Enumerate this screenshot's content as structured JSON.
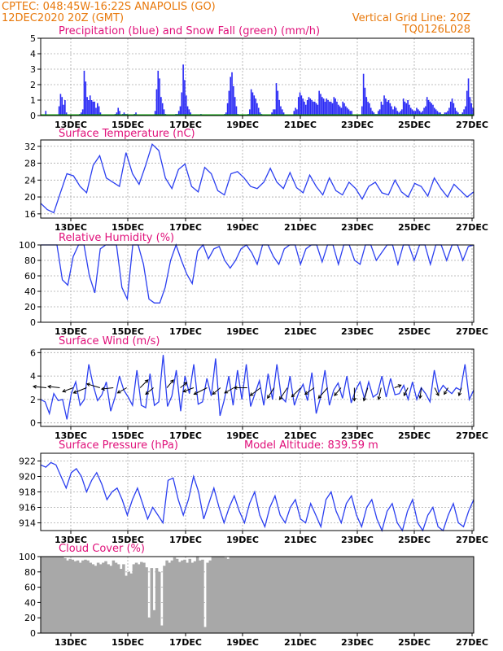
{
  "header": {
    "line1_left": "CPTEC:  048:45W-16:22S  ANAPOLIS (GO)",
    "line2_left": "12DEC2020 20Z (GMT)",
    "line2_right": "Vertical Grid Line: 20Z",
    "line3_right": "TQ0126L028"
  },
  "colors": {
    "header_text": "#e8780a",
    "panel_title": "#e0107a",
    "precip": "#2b2bf5",
    "snow": "#00a000",
    "series_line": "#2b3ff0",
    "wind_vector": "#000000",
    "cloud_fill": "#a8a8a8"
  },
  "x_axis": {
    "start": "12DEC2020 20Z",
    "end": "27DEC2020 20Z",
    "tick_labels": [
      "13DEC",
      "15DEC",
      "17DEC",
      "19DEC",
      "21DEC",
      "23DEC",
      "25DEC",
      "27DEC"
    ]
  },
  "chart_data": [
    {
      "type": "bar",
      "title": "Precipitation (blue) and Snow Fall (green) (mm/h)",
      "ylim": [
        0,
        5
      ],
      "yticks": [
        "0",
        "1",
        "2",
        "3",
        "4",
        "5"
      ],
      "grid": true,
      "series": [
        {
          "name": "Precipitation",
          "values": [
            0,
            0,
            0,
            0.3,
            0,
            0,
            0,
            0,
            0,
            0,
            0,
            0,
            0.6,
            1.4,
            1.2,
            0.7,
            1.0,
            0.2,
            0,
            0,
            0,
            0,
            0,
            0,
            0,
            0,
            0.1,
            0.2,
            0.4,
            2.9,
            2.2,
            1.2,
            1.0,
            1.3,
            1.0,
            0.9,
            0.9,
            0.5,
            0.8,
            0.6,
            0.2,
            0,
            0,
            0,
            0,
            0,
            0,
            0,
            0,
            0,
            0.1,
            0.2,
            0.5,
            0.3,
            0,
            0.1,
            0.2,
            0.1,
            0.1,
            0,
            0,
            0,
            0,
            0.1,
            0.2,
            0,
            0,
            0,
            0,
            0,
            0,
            0,
            0,
            0,
            0,
            0,
            0,
            0.3,
            1.7,
            2.9,
            2.4,
            1.2,
            0.8,
            0.4,
            0.1,
            0,
            0,
            0,
            0,
            0,
            0,
            0.1,
            0.1,
            0.3,
            0.6,
            1.5,
            3.3,
            2.3,
            1.3,
            0.6,
            0.4,
            0.2,
            0,
            0,
            0,
            0,
            0,
            0,
            0.1,
            0,
            0,
            0,
            0,
            0,
            0,
            0,
            0,
            0,
            0,
            0,
            0,
            0,
            0,
            0,
            0.1,
            0.2,
            0.8,
            1.6,
            2.5,
            2.8,
            1.9,
            1.2,
            0.6,
            0.1,
            0,
            0,
            0,
            0,
            0,
            0,
            0.1,
            0.4,
            1.7,
            1.5,
            1.3,
            1.1,
            0.8,
            0.5,
            0.2,
            0.1,
            0,
            0,
            0,
            0,
            0,
            0,
            0.2,
            0.4,
            0.4,
            2.1,
            1.6,
            1.0,
            0.6,
            0.4,
            0.2,
            0,
            0,
            0,
            0,
            0,
            0,
            0.3,
            0.5,
            0.4,
            1.2,
            1.5,
            1.3,
            1.1,
            0.9,
            0.7,
            1.0,
            1.2,
            1.1,
            1.0,
            0.9,
            0.9,
            0.8,
            0.7,
            1.6,
            1.4,
            1.2,
            1.1,
            0.9,
            1.1,
            1.0,
            0.9,
            0.9,
            0.8,
            1.2,
            1.1,
            0.9,
            0.7,
            0.6,
            0.5,
            0.9,
            0.8,
            0.6,
            0.5,
            0.4,
            0.3,
            0.3,
            0,
            0,
            0,
            0,
            0,
            0,
            0.6,
            2.7,
            1.8,
            1.2,
            0.9,
            0.8,
            0.5,
            0.3,
            0.2,
            0.1,
            0.1,
            0.3,
            0.4,
            0.9,
            0.7,
            1.3,
            1.1,
            0.9,
            1.0,
            0.8,
            0.6,
            0.4,
            0.6,
            0.5,
            0.3,
            0.2,
            0.3,
            0.4,
            1.1,
            0.9,
            0.8,
            1.0,
            0.7,
            0.5,
            0.4,
            0.3,
            0.3,
            0.5,
            0.4,
            0.3,
            0.2,
            0.3,
            0.5,
            0.6,
            1.2,
            1.0,
            0.9,
            0.8,
            0.7,
            0.5,
            0.4,
            0.3,
            0.2,
            0.2,
            0.1,
            0.1,
            0.2,
            0.2,
            0.3,
            0.5,
            0.9,
            1.1,
            0.8,
            0.5,
            0.3,
            0.2,
            0.1,
            0.1,
            0.2,
            0.4,
            0.6,
            1.6,
            2.4,
            1.2,
            0.8,
            0.5
          ]
        },
        {
          "name": "Snow Fall",
          "values": [
            0,
            0
          ]
        }
      ]
    },
    {
      "type": "line",
      "title": "Surface Temperature (nC)",
      "ylim": [
        15,
        33.5
      ],
      "yticks": [
        "16",
        "20",
        "24",
        "28",
        "32"
      ],
      "grid": true,
      "series": [
        {
          "values": [
            18.5,
            17.0,
            16.3,
            21.0,
            25.5,
            25.0,
            22.5,
            21.0,
            27.5,
            29.8,
            24.5,
            23.5,
            22.5,
            30.5,
            25.5,
            23.0,
            27.5,
            32.5,
            31.0,
            24.5,
            22.0,
            26.5,
            27.8,
            22.5,
            21.2,
            27.0,
            25.5,
            21.5,
            20.5,
            25.5,
            26.0,
            24.5,
            22.5,
            22.0,
            23.5,
            26.8,
            23.5,
            22.0,
            25.8,
            22.2,
            21.0,
            25.2,
            22.5,
            20.5,
            24.5,
            21.5,
            20.5,
            23.5,
            22.0,
            19.5,
            22.5,
            23.5,
            21.0,
            20.5,
            24.0,
            21.2,
            20.0,
            23.2,
            22.5,
            20.2,
            24.5,
            22.0,
            20.0,
            23.0,
            21.5,
            20.0,
            21.2
          ]
        }
      ]
    },
    {
      "type": "line",
      "title": "Relative Humidity (%)",
      "ylim": [
        0,
        100
      ],
      "yticks": [
        "0",
        "20",
        "40",
        "60",
        "80",
        "100"
      ],
      "grid": true,
      "series": [
        {
          "values": [
            100,
            100,
            100,
            100,
            55,
            48,
            85,
            100,
            100,
            60,
            38,
            95,
            100,
            100,
            100,
            45,
            30,
            100,
            100,
            75,
            30,
            25,
            25,
            45,
            80,
            100,
            80,
            62,
            50,
            92,
            100,
            82,
            95,
            98,
            80,
            70,
            80,
            95,
            100,
            90,
            75,
            100,
            100,
            85,
            75,
            95,
            100,
            100,
            75,
            95,
            100,
            100,
            78,
            100,
            100,
            75,
            100,
            100,
            80,
            75,
            100,
            100,
            80,
            90,
            100,
            100,
            75,
            100,
            100,
            80,
            100,
            100,
            75,
            100,
            100,
            80,
            100,
            100,
            80,
            98,
            100
          ]
        }
      ]
    },
    {
      "type": "line",
      "title": "Surface Wind (m/s)",
      "ylim": [
        -0.3,
        6.3
      ],
      "yticks": [
        "0",
        "2",
        "4",
        "6"
      ],
      "grid": true,
      "series": [
        {
          "values": [
            2.0,
            1.8,
            0.8,
            2.5,
            1.9,
            2.0,
            0.3,
            2.5,
            3.5,
            1.5,
            2.0,
            5.0,
            3.2,
            1.9,
            2.4,
            3.5,
            1.0,
            2.2,
            4.0,
            2.8,
            2.2,
            1.5,
            4.5,
            1.5,
            1.3,
            4.2,
            1.5,
            1.8,
            5.8,
            1.4,
            2.3,
            4.5,
            1.0,
            4.0,
            2.5,
            5.0,
            1.6,
            1.8,
            3.8,
            2.3,
            5.5,
            0.6,
            2.0,
            4.0,
            1.5,
            4.5,
            2.0,
            5.0,
            1.4,
            2.5,
            3.6,
            1.5,
            4.2,
            2.0,
            5.0,
            2.2,
            1.8,
            4.0,
            1.5,
            2.6,
            3.3,
            1.9,
            4.3,
            0.8,
            2.2,
            4.5,
            1.5,
            2.8,
            3.4,
            2.1,
            4.0,
            1.7,
            2.8,
            3.5,
            2.1,
            3.5,
            2.2,
            2.5,
            4.0,
            2.2,
            3.8,
            2.4,
            2.5,
            3.2,
            2.0,
            3.5,
            2.0,
            3.0,
            2.5,
            1.8,
            4.5,
            2.6,
            3.2,
            2.8,
            2.5,
            3.0,
            2.8,
            5.0,
            2.0,
            2.8
          ]
        }
      ],
      "wind_vectors": [
        [
          -1.0,
          0.1
        ],
        [
          -0.9,
          0.1
        ],
        [
          -0.8,
          -0.3
        ],
        [
          -1.0,
          -0.4
        ],
        [
          -1.0,
          0.3
        ],
        [
          -0.9,
          -0.1
        ],
        [
          -0.7,
          -0.4
        ],
        [
          0.6,
          0.6
        ],
        [
          -0.6,
          -0.5
        ],
        [
          0.5,
          0.6
        ],
        [
          0.5,
          0.4
        ],
        [
          -0.8,
          -0.3
        ],
        [
          -1.0,
          -0.5
        ],
        [
          -0.6,
          -0.5
        ],
        [
          -0.7,
          -0.4
        ],
        [
          -1.0,
          0.0
        ],
        [
          -0.8,
          -0.6
        ],
        [
          -0.5,
          -0.8
        ],
        [
          -0.6,
          -0.9
        ],
        [
          -0.7,
          -0.7
        ],
        [
          -0.7,
          -0.5
        ],
        [
          -0.7,
          -0.8
        ],
        [
          -0.5,
          -0.6
        ],
        [
          0.0,
          -1.0
        ],
        [
          -0.3,
          -1.0
        ],
        [
          -0.2,
          -0.9
        ],
        [
          0.5,
          0.2
        ],
        [
          -0.3,
          -0.6
        ],
        [
          -0.1,
          -0.8
        ],
        [
          0.3,
          -0.6
        ],
        [
          -0.3,
          -0.5
        ],
        [
          -0.2,
          -0.6
        ]
      ]
    },
    {
      "type": "line",
      "title": "Surface Pressure (hPa)",
      "annotation": "Model Altitude: 839.59  m",
      "ylim": [
        913.0,
        923.0
      ],
      "yticks": [
        "914",
        "916",
        "918",
        "920",
        "922"
      ],
      "grid": true,
      "series": [
        {
          "values": [
            921.5,
            921.2,
            921.8,
            921.5,
            920.0,
            918.5,
            920.5,
            921.0,
            920.0,
            918.0,
            919.5,
            920.5,
            919.0,
            917.0,
            918.0,
            918.5,
            917.0,
            915.0,
            917.0,
            918.5,
            916.5,
            914.5,
            916.0,
            915.0,
            914.0,
            919.5,
            919.8,
            917.0,
            915.0,
            917.0,
            920.0,
            918.0,
            914.5,
            916.5,
            918.5,
            916.0,
            914.0,
            916.0,
            917.5,
            915.5,
            914.0,
            916.5,
            918.0,
            915.0,
            913.5,
            916.0,
            917.5,
            915.0,
            914.0,
            916.0,
            917.0,
            914.5,
            914.0,
            916.5,
            915.0,
            913.5,
            917.0,
            918.0,
            915.5,
            914.0,
            916.5,
            917.5,
            915.0,
            913.5,
            916.0,
            917.0,
            914.5,
            913.0,
            915.5,
            916.5,
            914.0,
            913.0,
            915.5,
            917.0,
            914.0,
            913.0,
            915.0,
            916.0,
            913.5,
            913.0,
            915.0,
            916.5,
            914.0,
            913.5,
            915.5,
            917.0
          ]
        }
      ]
    },
    {
      "type": "area",
      "title": "Cloud Cover (%)",
      "ylim": [
        0,
        100
      ],
      "yticks": [
        "0",
        "20",
        "40",
        "60",
        "80",
        "100"
      ],
      "grid": true,
      "series": [
        {
          "values": [
            100,
            100,
            100,
            100,
            100,
            100,
            100,
            100,
            100,
            98,
            95,
            97,
            96,
            94,
            95,
            92,
            95,
            96,
            95,
            92,
            90,
            88,
            92,
            90,
            92,
            94,
            90,
            88,
            95,
            92,
            90,
            84,
            90,
            75,
            80,
            78,
            90,
            92,
            90,
            93,
            92,
            86,
            20,
            85,
            30,
            85,
            80,
            10,
            88,
            95,
            92,
            95,
            99,
            97,
            93,
            95,
            96,
            92,
            97,
            92,
            94,
            100,
            95,
            96,
            8,
            92,
            95,
            100,
            100,
            100,
            100,
            100,
            99,
            97,
            100,
            100,
            100,
            100,
            100,
            100,
            100,
            100,
            100,
            100,
            100,
            100,
            100,
            100,
            100,
            100,
            100,
            100,
            100,
            100,
            100,
            100,
            100,
            100,
            100,
            100,
            100,
            100,
            100,
            100,
            100,
            100,
            100,
            100,
            100,
            100,
            100,
            100,
            100,
            100,
            100,
            100,
            100,
            100,
            100,
            100,
            100,
            100,
            100,
            100,
            100,
            100,
            100,
            100,
            100,
            100,
            100,
            100,
            100,
            100,
            100,
            100,
            100,
            100,
            100,
            100,
            100,
            100,
            100,
            100,
            100,
            100,
            100,
            100,
            100,
            100,
            100,
            100,
            100,
            100,
            100,
            100,
            100,
            100,
            100,
            100,
            100,
            100,
            100,
            100,
            100,
            100,
            100,
            100,
            100,
            100
          ]
        }
      ]
    }
  ]
}
